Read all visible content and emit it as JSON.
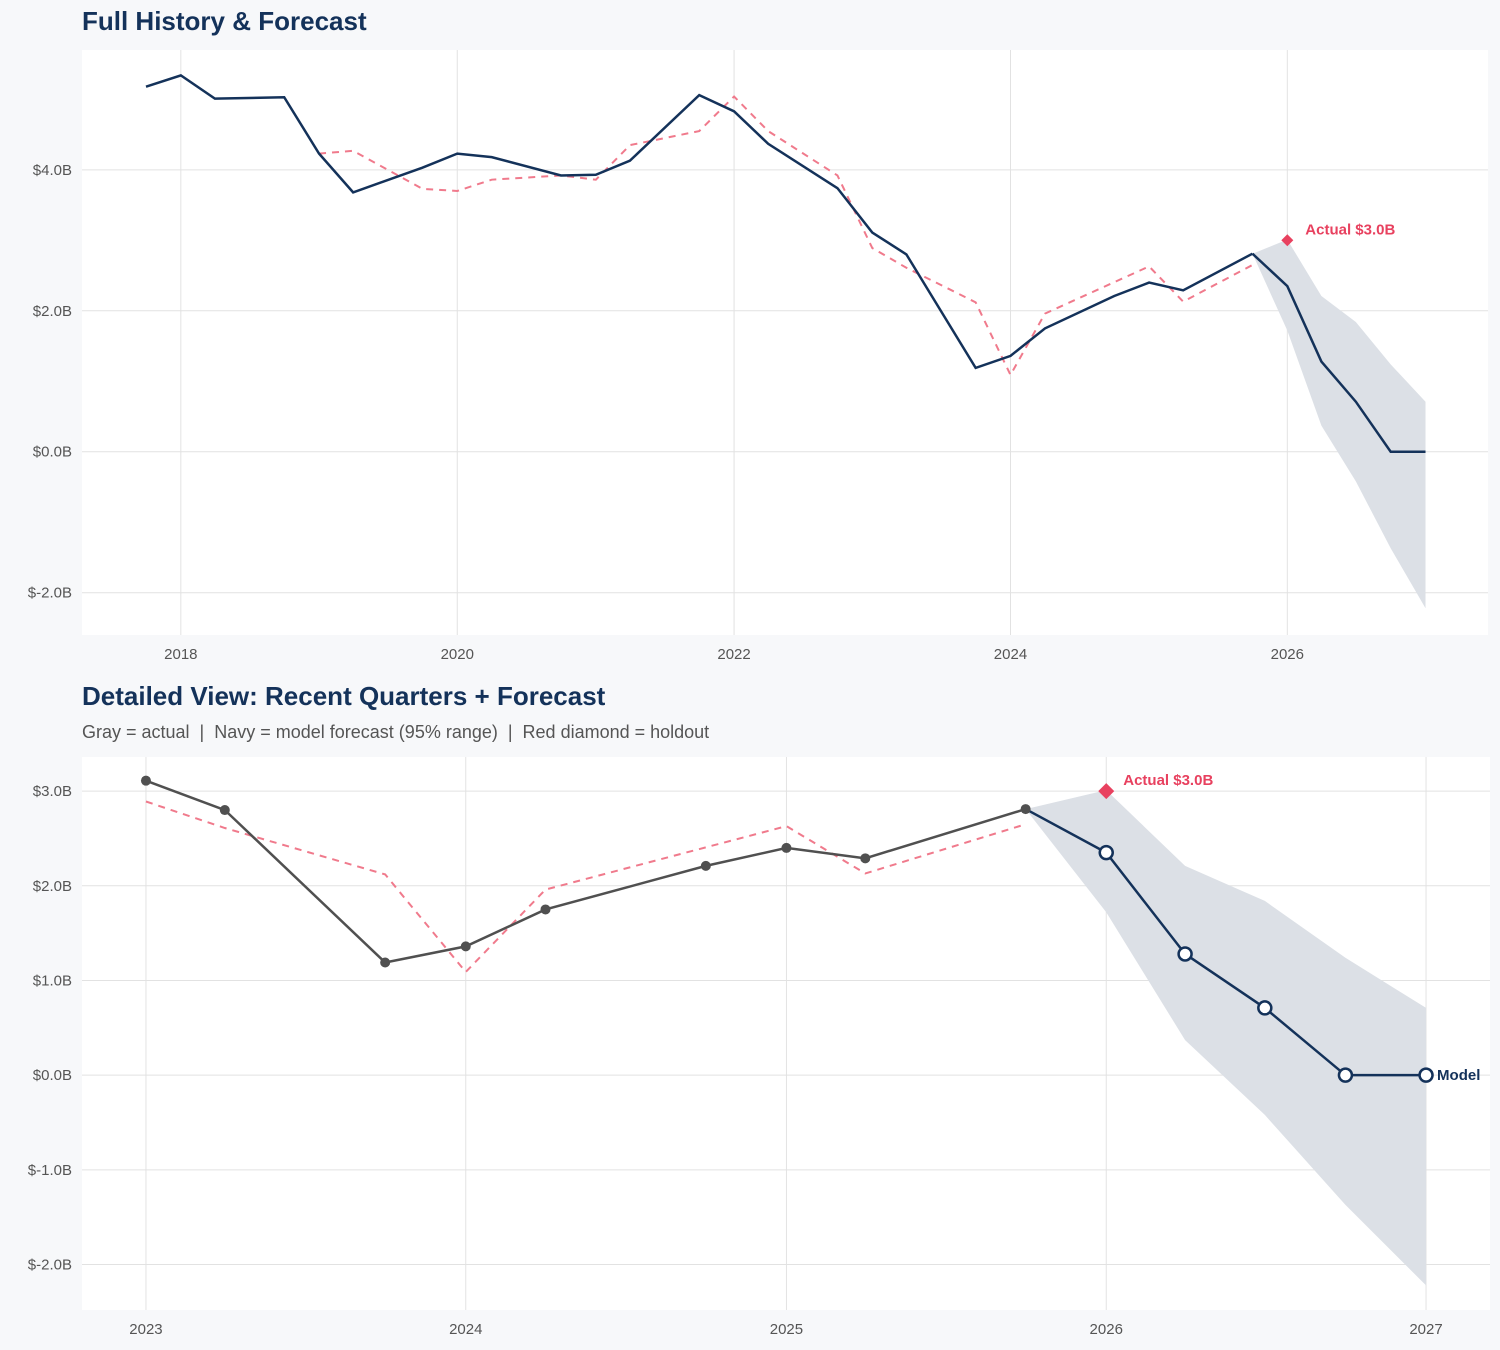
{
  "colors": {
    "navy": "#14325a",
    "gray": "#505050",
    "red": "#e8415f",
    "fitted": "#f07a8c",
    "band": "#dce0e6"
  },
  "chart_data": [
    {
      "type": "line",
      "title": "Full History & Forecast",
      "xlim": [
        "2017-04-15",
        "2027-06-15"
      ],
      "ylim": [
        -2.6,
        5.7
      ],
      "grid": true,
      "x_ticks": [
        {
          "date": "2018-01-01",
          "label": "2018"
        },
        {
          "date": "2020-01-01",
          "label": "2020"
        },
        {
          "date": "2022-01-01",
          "label": "2022"
        },
        {
          "date": "2024-01-01",
          "label": "2024"
        },
        {
          "date": "2026-01-01",
          "label": "2026"
        }
      ],
      "y_ticks": [
        {
          "value": 4,
          "label": "$4.0B"
        },
        {
          "value": 2,
          "label": "$2.0B"
        },
        {
          "value": 0,
          "label": "$0.0B"
        },
        {
          "value": -2,
          "label": "$-2.0B"
        }
      ],
      "annotation": {
        "text": "Actual $3.0B"
      }
    },
    {
      "type": "line",
      "title": "Detailed View: Recent Quarters + Forecast",
      "subtitle": "Gray = actual  |  Navy = model forecast (95% range)  |  Red diamond = holdout",
      "xlim": [
        "2022-10-20",
        "2027-03-15"
      ],
      "ylim": [
        -2.48,
        3.36
      ],
      "grid": true,
      "x_ticks": [
        {
          "date": "2023-01-01",
          "label": "2023"
        },
        {
          "date": "2024-01-01",
          "label": "2024"
        },
        {
          "date": "2025-01-01",
          "label": "2025"
        },
        {
          "date": "2026-01-01",
          "label": "2026"
        },
        {
          "date": "2027-01-01",
          "label": "2027"
        }
      ],
      "y_ticks": [
        {
          "value": 3,
          "label": "$3.0B"
        },
        {
          "value": 2,
          "label": "$2.0B"
        },
        {
          "value": 1,
          "label": "$1.0B"
        },
        {
          "value": 0,
          "label": "$0.0B"
        },
        {
          "value": -1,
          "label": "$-1.0B"
        },
        {
          "value": -2,
          "label": "$-2.0B"
        }
      ],
      "annotation": {
        "text": "Actual $3.0B"
      },
      "end_label": "Model",
      "detail_start": "2023-01-01"
    }
  ],
  "series": {
    "actual": [
      [
        "2017-10-01",
        5.18
      ],
      [
        "2018-01-01",
        5.34
      ],
      [
        "2018-04-01",
        5.01
      ],
      [
        "2018-10-01",
        5.03
      ],
      [
        "2019-01-01",
        4.23
      ],
      [
        "2019-04-01",
        3.68
      ],
      [
        "2019-10-01",
        4.03
      ],
      [
        "2020-01-01",
        4.23
      ],
      [
        "2020-04-01",
        4.18
      ],
      [
        "2020-10-01",
        3.92
      ],
      [
        "2021-01-01",
        3.93
      ],
      [
        "2021-04-01",
        4.13
      ],
      [
        "2021-10-01",
        5.06
      ],
      [
        "2022-01-01",
        4.83
      ],
      [
        "2022-04-01",
        4.37
      ],
      [
        "2022-10-01",
        3.74
      ],
      [
        "2023-01-01",
        3.11
      ],
      [
        "2023-04-01",
        2.8
      ],
      [
        "2023-10-01",
        1.19
      ],
      [
        "2024-01-01",
        1.36
      ],
      [
        "2024-04-01",
        1.75
      ],
      [
        "2024-10-01",
        2.21
      ],
      [
        "2025-01-01",
        2.4
      ],
      [
        "2025-04-01",
        2.29
      ],
      [
        "2025-10-01",
        2.81
      ]
    ],
    "fitted": [
      [
        "2019-01-01",
        4.23
      ],
      [
        "2019-04-01",
        4.27
      ],
      [
        "2019-10-01",
        3.73
      ],
      [
        "2020-01-01",
        3.7
      ],
      [
        "2020-04-01",
        3.86
      ],
      [
        "2020-10-01",
        3.92
      ],
      [
        "2021-01-01",
        3.86
      ],
      [
        "2021-04-01",
        4.35
      ],
      [
        "2021-10-01",
        4.55
      ],
      [
        "2022-01-01",
        5.04
      ],
      [
        "2022-04-01",
        4.55
      ],
      [
        "2022-10-01",
        3.92
      ],
      [
        "2023-01-01",
        2.89
      ],
      [
        "2023-04-01",
        2.61
      ],
      [
        "2023-10-01",
        2.12
      ],
      [
        "2024-01-01",
        1.09
      ],
      [
        "2024-04-01",
        1.96
      ],
      [
        "2025-01-01",
        2.63
      ],
      [
        "2025-04-01",
        2.13
      ],
      [
        "2025-10-01",
        2.65
      ]
    ],
    "forecast": [
      [
        "2025-10-01",
        2.81
      ],
      [
        "2026-01-01",
        2.35
      ],
      [
        "2026-04-01",
        1.28
      ],
      [
        "2026-07-01",
        0.71
      ],
      [
        "2026-10-01",
        0.0
      ],
      [
        "2027-01-01",
        0.0
      ]
    ],
    "band": [
      [
        "2025-10-01",
        2.81,
        2.81
      ],
      [
        "2026-01-01",
        1.72,
        3.01
      ],
      [
        "2026-04-01",
        0.37,
        2.21
      ],
      [
        "2026-07-01",
        -0.42,
        1.84
      ],
      [
        "2026-10-01",
        -1.37,
        1.24
      ],
      [
        "2027-01-01",
        -2.22,
        0.71
      ]
    ],
    "holdout": [
      "2026-01-01",
      3.0
    ]
  }
}
